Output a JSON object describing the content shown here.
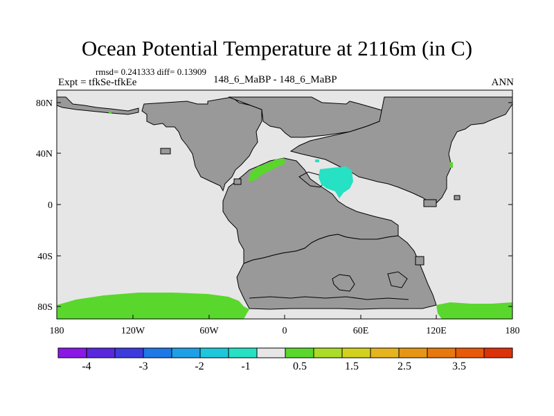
{
  "title": "Ocean Potential Temperature at 2116m (in C)",
  "stats": "rmsd= 0.241333  diff= 0.13909",
  "experiment": "Expt = tfkSe-tfkEe",
  "subtitle": "148_6_MaBP - 148_6_MaBP",
  "season": "ANN",
  "map": {
    "lat_ticks": [
      "80N",
      "40N",
      "0",
      "40S",
      "80S"
    ],
    "lon_ticks": [
      "180",
      "120W",
      "60W",
      "0",
      "60E",
      "120E",
      "180"
    ],
    "colors": {
      "ocean_near_zero": "#e6e6e6",
      "land": "#999999",
      "positive_anomaly": "#5ad72d",
      "negative_anomaly": "#26e1c3"
    }
  },
  "colorbar": {
    "labels": [
      "-4",
      "-3",
      "-2",
      "-1",
      "0.5",
      "1.5",
      "2.5",
      "3.5"
    ],
    "colors": [
      "#8b19e6",
      "#5a28dc",
      "#3c3cdc",
      "#1e78e6",
      "#1ea0e6",
      "#1ec8dc",
      "#26e1c3",
      "#e6e6e6",
      "#5ad72d",
      "#aadc28",
      "#d2d21e",
      "#e6b41e",
      "#e69614",
      "#e6780f",
      "#e65a0a",
      "#dc320a"
    ]
  }
}
